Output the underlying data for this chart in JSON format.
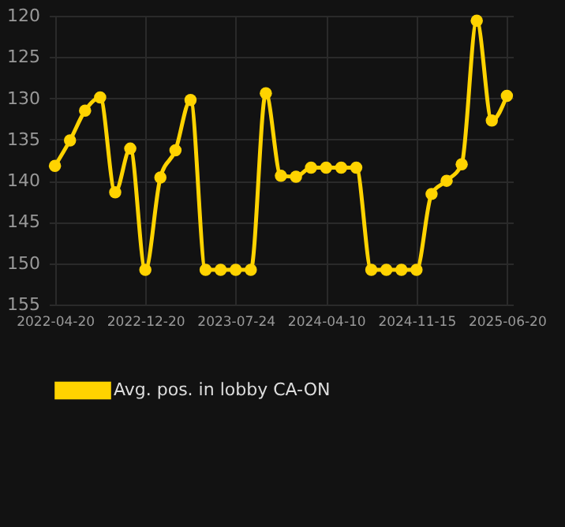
{
  "chart_data": {
    "type": "line",
    "categories": [
      "2022-04-20",
      null,
      null,
      null,
      null,
      null,
      "2022-12-20",
      null,
      null,
      null,
      null,
      null,
      "2023-07-24",
      null,
      null,
      null,
      null,
      null,
      "2024-04-10",
      null,
      null,
      null,
      null,
      null,
      "2024-11-15",
      null,
      null,
      null,
      null,
      null,
      "2025-06-20"
    ],
    "series": [
      {
        "name": "Avg. pos. in lobby CA-ON",
        "color": "#ffd300",
        "values": [
          138.2,
          135.1,
          131.5,
          129.9,
          141.4,
          136.1,
          150.8,
          139.6,
          136.3,
          130.2,
          150.8,
          150.8,
          150.8,
          150.8,
          129.4,
          139.4,
          139.5,
          138.4,
          138.4,
          138.4,
          138.4,
          150.8,
          150.8,
          150.8,
          150.8,
          141.6,
          140.0,
          138.0,
          120.6,
          132.7,
          129.7
        ]
      }
    ],
    "ylim": [
      155,
      120
    ],
    "yticks": [
      120,
      125,
      130,
      135,
      140,
      145,
      150,
      155
    ],
    "grid": true,
    "legend": "bottom",
    "marker": "circle",
    "line_style": "solid"
  }
}
